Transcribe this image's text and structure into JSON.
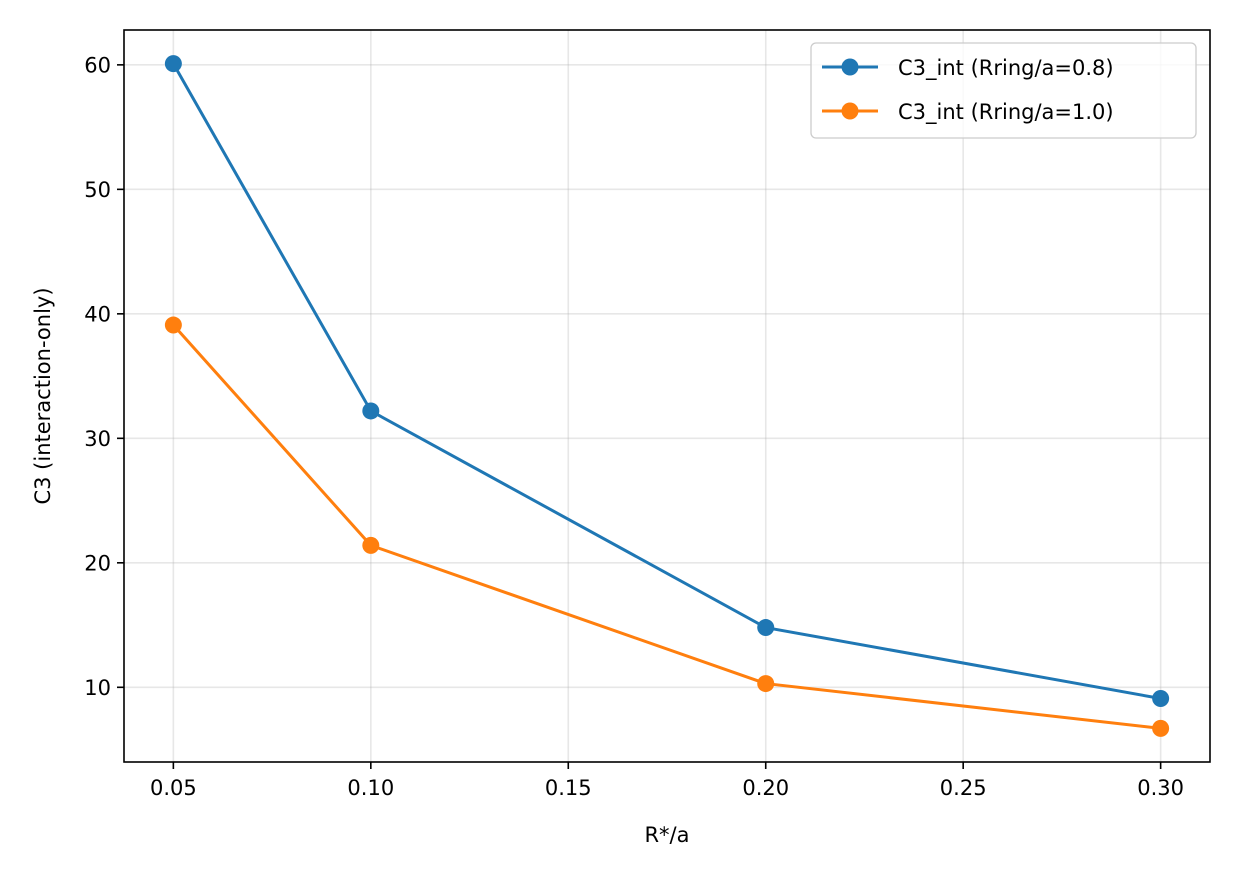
{
  "chart_data": {
    "type": "line",
    "xlabel": "R*/a",
    "ylabel": "C3 (interaction-only)",
    "xlim": [
      0.0375,
      0.3125
    ],
    "ylim": [
      4.0,
      62.8
    ],
    "xticks": [
      0.05,
      0.1,
      0.15,
      0.2,
      0.25,
      0.3
    ],
    "xtick_labels": [
      "0.05",
      "0.10",
      "0.15",
      "0.20",
      "0.25",
      "0.30"
    ],
    "yticks": [
      10,
      20,
      30,
      40,
      50,
      60
    ],
    "ytick_labels": [
      "10",
      "20",
      "30",
      "40",
      "50",
      "60"
    ],
    "grid": true,
    "legend_position": "top-right",
    "series": [
      {
        "name": "C3_int (Rring/a=0.8)",
        "color": "#1f77b4",
        "marker": "circle",
        "x": [
          0.05,
          0.1,
          0.2,
          0.3
        ],
        "y": [
          60.1,
          32.2,
          14.8,
          9.1
        ]
      },
      {
        "name": "C3_int (Rring/a=1.0)",
        "color": "#ff7f0e",
        "marker": "circle",
        "x": [
          0.05,
          0.1,
          0.2,
          0.3
        ],
        "y": [
          39.1,
          21.4,
          10.3,
          6.7
        ]
      }
    ]
  }
}
